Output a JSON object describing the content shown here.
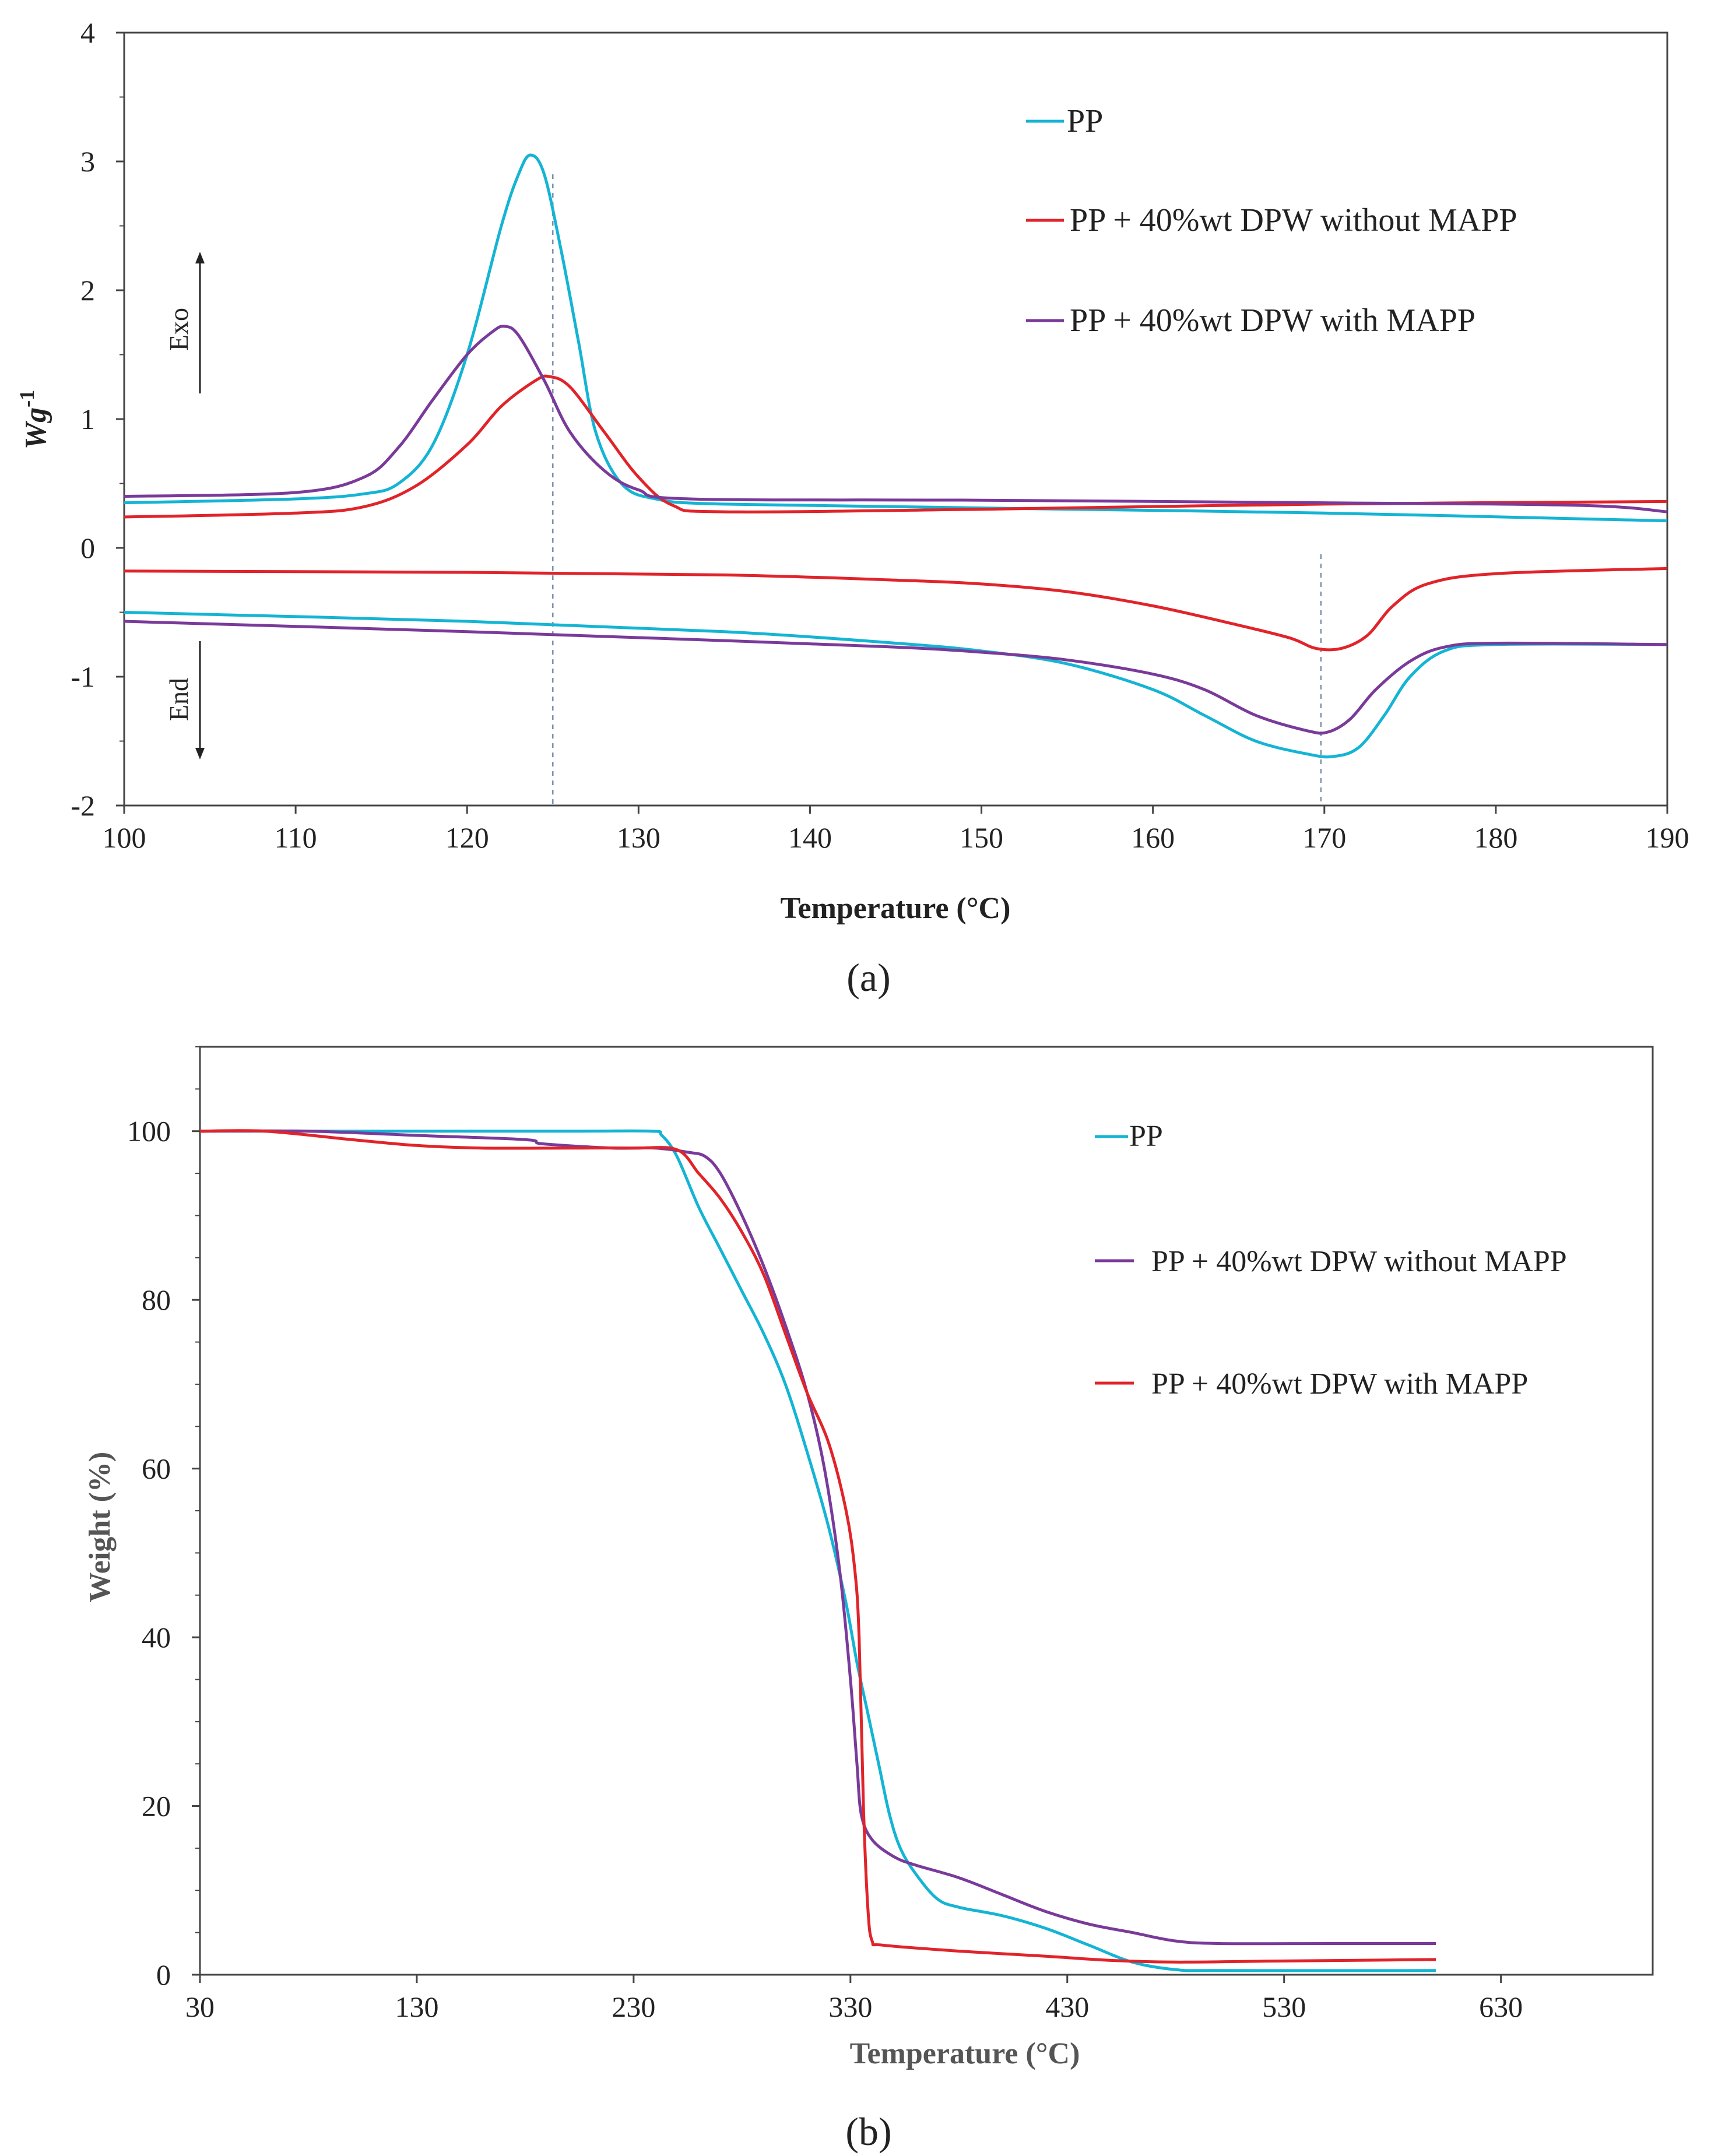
{
  "chart_data": [
    {
      "panel_label": "(a)",
      "type": "line",
      "title": "",
      "xlabel": "Temperature (°C)",
      "ylabel": "Wg-1",
      "ylabel_main": "Wg",
      "ylabel_sup": "-1",
      "xlim": [
        100,
        190
      ],
      "ylim": [
        -2,
        4
      ],
      "xticks": [
        100,
        110,
        120,
        130,
        140,
        150,
        160,
        170,
        180,
        190
      ],
      "yticks": [
        -2,
        -1,
        0,
        1,
        2,
        3,
        4
      ],
      "grid": false,
      "legend_position": "top-right",
      "exo_label": "Exo",
      "endo_label": "End",
      "reference_lines_x": [
        125,
        169.8
      ],
      "series": [
        {
          "name": "PP",
          "curve": "crystallization",
          "color": "#14b4d4",
          "points": [
            [
              100,
              0.35
            ],
            [
              110,
              0.38
            ],
            [
              114,
              0.42
            ],
            [
              116,
              0.5
            ],
            [
              118,
              0.8
            ],
            [
              120,
              1.5
            ],
            [
              122,
              2.5
            ],
            [
              123,
              2.9
            ],
            [
              123.7,
              3.05
            ],
            [
              124.5,
              2.9
            ],
            [
              125.5,
              2.3
            ],
            [
              126.5,
              1.6
            ],
            [
              127.5,
              0.9
            ],
            [
              129,
              0.5
            ],
            [
              131,
              0.38
            ],
            [
              135,
              0.34
            ],
            [
              150,
              0.31
            ],
            [
              170,
              0.27
            ],
            [
              190,
              0.21
            ]
          ]
        },
        {
          "name": "PP + 40%wt DPW without MAPP",
          "curve": "crystallization",
          "color": "#e0242a",
          "points": [
            [
              100,
              0.24
            ],
            [
              110,
              0.27
            ],
            [
              114,
              0.32
            ],
            [
              117,
              0.48
            ],
            [
              120,
              0.8
            ],
            [
              122,
              1.1
            ],
            [
              124,
              1.3
            ],
            [
              124.8,
              1.33
            ],
            [
              126,
              1.25
            ],
            [
              128,
              0.9
            ],
            [
              130,
              0.55
            ],
            [
              132,
              0.33
            ],
            [
              135,
              0.28
            ],
            [
              150,
              0.3
            ],
            [
              170,
              0.34
            ],
            [
              190,
              0.36
            ]
          ]
        },
        {
          "name": "PP + 40%wt DPW with MAPP",
          "curve": "crystallization",
          "color": "#7a3a9a",
          "points": [
            [
              100,
              0.4
            ],
            [
              110,
              0.43
            ],
            [
              114,
              0.55
            ],
            [
              116,
              0.78
            ],
            [
              118,
              1.15
            ],
            [
              120,
              1.5
            ],
            [
              121.5,
              1.68
            ],
            [
              122.2,
              1.72
            ],
            [
              123,
              1.65
            ],
            [
              124.5,
              1.3
            ],
            [
              126,
              0.9
            ],
            [
              128,
              0.6
            ],
            [
              130,
              0.45
            ],
            [
              133,
              0.38
            ],
            [
              150,
              0.37
            ],
            [
              170,
              0.35
            ],
            [
              185,
              0.33
            ],
            [
              190,
              0.28
            ]
          ]
        },
        {
          "name": "PP + 40%wt DPW without MAPP",
          "curve": "melting",
          "color": "#e0242a",
          "points": [
            [
              100,
              -0.18
            ],
            [
              120,
              -0.19
            ],
            [
              135,
              -0.21
            ],
            [
              145,
              -0.25
            ],
            [
              150,
              -0.28
            ],
            [
              155,
              -0.34
            ],
            [
              160,
              -0.45
            ],
            [
              165,
              -0.6
            ],
            [
              168,
              -0.7
            ],
            [
              169.5,
              -0.78
            ],
            [
              171,
              -0.78
            ],
            [
              172.5,
              -0.68
            ],
            [
              174,
              -0.45
            ],
            [
              176,
              -0.28
            ],
            [
              180,
              -0.2
            ],
            [
              190,
              -0.16
            ]
          ]
        },
        {
          "name": "PP",
          "curve": "melting",
          "color": "#14b4d4",
          "points": [
            [
              100,
              -0.5
            ],
            [
              120,
              -0.57
            ],
            [
              135,
              -0.65
            ],
            [
              145,
              -0.74
            ],
            [
              150,
              -0.8
            ],
            [
              155,
              -0.9
            ],
            [
              160,
              -1.1
            ],
            [
              163,
              -1.3
            ],
            [
              166,
              -1.5
            ],
            [
              169,
              -1.6
            ],
            [
              170.5,
              -1.62
            ],
            [
              172,
              -1.55
            ],
            [
              173.5,
              -1.3
            ],
            [
              175,
              -1.0
            ],
            [
              177,
              -0.8
            ],
            [
              180,
              -0.75
            ],
            [
              190,
              -0.75
            ]
          ]
        },
        {
          "name": "PP + 40%wt DPW with MAPP",
          "curve": "melting",
          "color": "#7a3a9a",
          "points": [
            [
              100,
              -0.57
            ],
            [
              120,
              -0.65
            ],
            [
              135,
              -0.72
            ],
            [
              145,
              -0.77
            ],
            [
              150,
              -0.81
            ],
            [
              155,
              -0.87
            ],
            [
              160,
              -0.98
            ],
            [
              163,
              -1.1
            ],
            [
              166,
              -1.3
            ],
            [
              169,
              -1.42
            ],
            [
              170.2,
              -1.43
            ],
            [
              171.5,
              -1.33
            ],
            [
              173,
              -1.1
            ],
            [
              175,
              -0.88
            ],
            [
              177,
              -0.77
            ],
            [
              180,
              -0.74
            ],
            [
              190,
              -0.75
            ]
          ]
        }
      ],
      "legend": [
        {
          "name": "PP",
          "color": "#14b4d4"
        },
        {
          "name": "PP + 40%wt DPW without MAPP",
          "color": "#e0242a"
        },
        {
          "name": "PP + 40%wt DPW with MAPP",
          "color": "#7a3a9a"
        }
      ]
    },
    {
      "panel_label": "(b)",
      "type": "line",
      "title": "",
      "xlabel": "Temperature (°C)",
      "ylabel": "Weight (%)",
      "xlim": [
        30,
        700
      ],
      "ylim": [
        0,
        110
      ],
      "xticks": [
        30,
        130,
        230,
        330,
        430,
        530,
        630
      ],
      "yticks": [
        0,
        20,
        40,
        60,
        80,
        100
      ],
      "grid": false,
      "legend_position": "top-right",
      "series": [
        {
          "name": "PP",
          "color": "#14b4d4",
          "points": [
            [
              30,
              100
            ],
            [
              100,
              100
            ],
            [
              200,
              100
            ],
            [
              238,
              100
            ],
            [
              243,
              99.5
            ],
            [
              250,
              97
            ],
            [
              260,
              91
            ],
            [
              270,
              86
            ],
            [
              280,
              81
            ],
            [
              290,
              76
            ],
            [
              300,
              70
            ],
            [
              310,
              62
            ],
            [
              320,
              53
            ],
            [
              328,
              44
            ],
            [
              333,
              37
            ],
            [
              338,
              31
            ],
            [
              343,
              25
            ],
            [
              348,
              19
            ],
            [
              353,
              15
            ],
            [
              360,
              12
            ],
            [
              370,
              9
            ],
            [
              380,
              8
            ],
            [
              400,
              7
            ],
            [
              420,
              5.5
            ],
            [
              440,
              3.5
            ],
            [
              460,
              1.5
            ],
            [
              480,
              0.6
            ],
            [
              500,
              0.5
            ],
            [
              600,
              0.5
            ]
          ]
        },
        {
          "name": "PP + 40%wt DPW without MAPP",
          "color": "#7a3a9a",
          "points": [
            [
              30,
              100
            ],
            [
              80,
              100
            ],
            [
              130,
              99.5
            ],
            [
              180,
              99
            ],
            [
              188,
              98.5
            ],
            [
              220,
              98
            ],
            [
              240,
              98
            ],
            [
              255,
              97.5
            ],
            [
              263,
              97
            ],
            [
              270,
              95
            ],
            [
              280,
              90
            ],
            [
              290,
              84
            ],
            [
              300,
              77
            ],
            [
              310,
              69
            ],
            [
              318,
              60
            ],
            [
              325,
              48
            ],
            [
              330,
              35
            ],
            [
              333,
              25
            ],
            [
              335,
              19
            ],
            [
              340,
              16
            ],
            [
              350,
              14
            ],
            [
              360,
              13
            ],
            [
              380,
              11.5
            ],
            [
              400,
              9.5
            ],
            [
              420,
              7.5
            ],
            [
              440,
              6
            ],
            [
              460,
              5
            ],
            [
              480,
              4
            ],
            [
              500,
              3.7
            ],
            [
              550,
              3.7
            ],
            [
              600,
              3.7
            ]
          ]
        },
        {
          "name": "PP + 40%wt DPW with MAPP",
          "color": "#e0242a",
          "points": [
            [
              30,
              100
            ],
            [
              60,
              100
            ],
            [
              100,
              99
            ],
            [
              130,
              98.3
            ],
            [
              160,
              98
            ],
            [
              200,
              98
            ],
            [
              230,
              98
            ],
            [
              250,
              97.8
            ],
            [
              260,
              95
            ],
            [
              270,
              92
            ],
            [
              280,
              88
            ],
            [
              290,
              83
            ],
            [
              300,
              76
            ],
            [
              310,
              69
            ],
            [
              320,
              63
            ],
            [
              328,
              55
            ],
            [
              332,
              48
            ],
            [
              334,
              40
            ],
            [
              336,
              20
            ],
            [
              338,
              8
            ],
            [
              340,
              4
            ],
            [
              345,
              3.5
            ],
            [
              380,
              2.8
            ],
            [
              420,
              2.2
            ],
            [
              450,
              1.7
            ],
            [
              480,
              1.5
            ],
            [
              520,
              1.6
            ],
            [
              560,
              1.7
            ],
            [
              600,
              1.8
            ]
          ]
        }
      ],
      "legend": [
        {
          "name": "PP",
          "color": "#14b4d4"
        },
        {
          "name": "PP + 40%wt DPW without MAPP",
          "color": "#7a3a9a"
        },
        {
          "name": "PP + 40%wt DPW with MAPP",
          "color": "#e0242a"
        }
      ]
    }
  ]
}
